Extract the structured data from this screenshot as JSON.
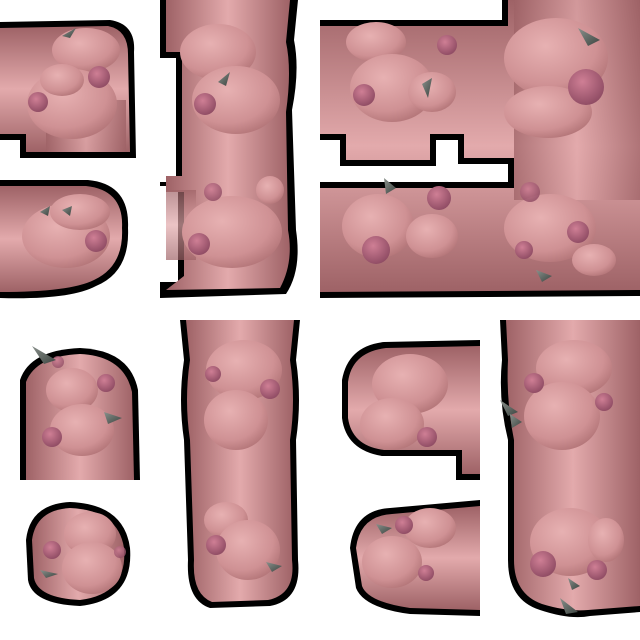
{
  "sheet": {
    "name": "flesh-corridor-tileset",
    "background": "#ffffff",
    "colors": {
      "outline": "#000000",
      "flesh_base": "#b77a7e",
      "flesh_light": "#e2a9ab",
      "flesh_dark": "#8f5357",
      "blob": "#d99a9c",
      "blob_shade": "#b97c80",
      "nodule": "#b0607a",
      "thorn": "#5a6460"
    },
    "tiles": [
      {
        "name": "tile-corner-top-left"
      },
      {
        "name": "tile-vertical-tee"
      },
      {
        "name": "tile-cross-junction-large"
      },
      {
        "name": "tile-end-right-small"
      },
      {
        "name": "tile-cap-top"
      },
      {
        "name": "tile-vertical-long"
      },
      {
        "name": "tile-corner-right-opening"
      },
      {
        "name": "tile-vertical-side-branch"
      },
      {
        "name": "tile-isolated-small"
      },
      {
        "name": "tile-blob-end-bottom"
      }
    ]
  }
}
